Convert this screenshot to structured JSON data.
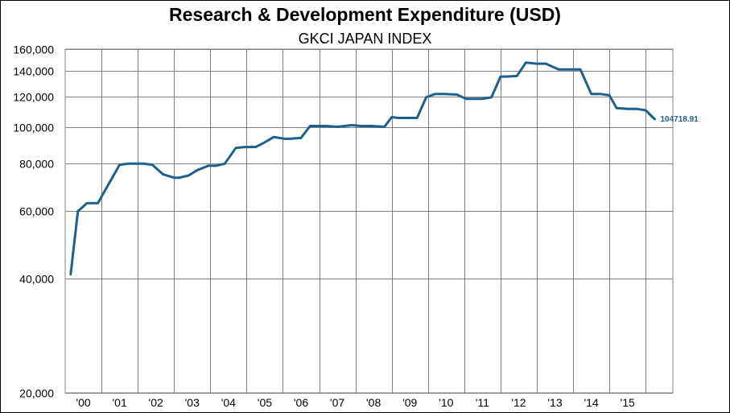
{
  "chart_data": {
    "type": "line",
    "title": "Research & Development Expenditure (USD)",
    "subtitle": "GKCI JAPAN INDEX",
    "xlabel": "",
    "ylabel": "",
    "yscale": "log",
    "ylim": [
      20000,
      160000
    ],
    "grid": true,
    "series_color": "#1f5f8b",
    "yticks": [
      20000,
      40000,
      60000,
      80000,
      100000,
      120000,
      140000,
      160000
    ],
    "ytick_labels": [
      "20,000",
      "40,000",
      "60,000",
      "80,000",
      "100,000",
      "120,000",
      "140,000",
      "160,000"
    ],
    "xtick_labels": [
      "'00",
      "'01",
      "'02",
      "'03",
      "'04",
      "'05",
      "'06",
      "'07",
      "'08",
      "'09",
      "'10",
      "'11",
      "'12",
      "'13",
      "'14",
      "'15"
    ],
    "xlim": [
      1999.85,
      2016.6
    ],
    "end_label": "104718.91",
    "series": [
      {
        "x": [
          2000.0,
          2000.2,
          2000.45,
          2000.75,
          2001.35,
          2001.6,
          2002.0,
          2002.25,
          2002.55,
          2002.85,
          2003.0,
          2003.25,
          2003.5,
          2003.8,
          2004.0,
          2004.25,
          2004.55,
          2004.8,
          2005.1,
          2005.3,
          2005.6,
          2005.9,
          2006.05,
          2006.35,
          2006.6,
          2006.85,
          2007.05,
          2007.35,
          2007.75,
          2008.0,
          2008.3,
          2008.65,
          2008.85,
          2009.05,
          2009.3,
          2009.55,
          2009.8,
          2010.05,
          2010.3,
          2010.65,
          2010.9,
          2011.05,
          2011.35,
          2011.6,
          2011.85,
          2012.0,
          2012.3,
          2012.55,
          2012.85,
          2013.1,
          2013.45,
          2013.8,
          2014.05,
          2014.35,
          2014.6,
          2014.85,
          2015.05,
          2015.35,
          2015.6,
          2015.85,
          2016.1
        ],
        "y": [
          41000,
          60000,
          63000,
          63000,
          79500,
          80000,
          80000,
          79500,
          75000,
          73500,
          73500,
          74500,
          77000,
          79000,
          79000,
          80000,
          88000,
          88500,
          88500,
          90500,
          94000,
          93000,
          93000,
          93500,
          100500,
          100500,
          100500,
          100000,
          101000,
          100500,
          100500,
          100000,
          106000,
          105500,
          105500,
          105500,
          119500,
          122000,
          122000,
          121500,
          118500,
          118500,
          118500,
          119500,
          135500,
          135500,
          136000,
          147500,
          146500,
          146500,
          141500,
          141500,
          141500,
          122000,
          122000,
          121000,
          112000,
          111500,
          111500,
          110500,
          104718.91
        ]
      }
    ]
  }
}
